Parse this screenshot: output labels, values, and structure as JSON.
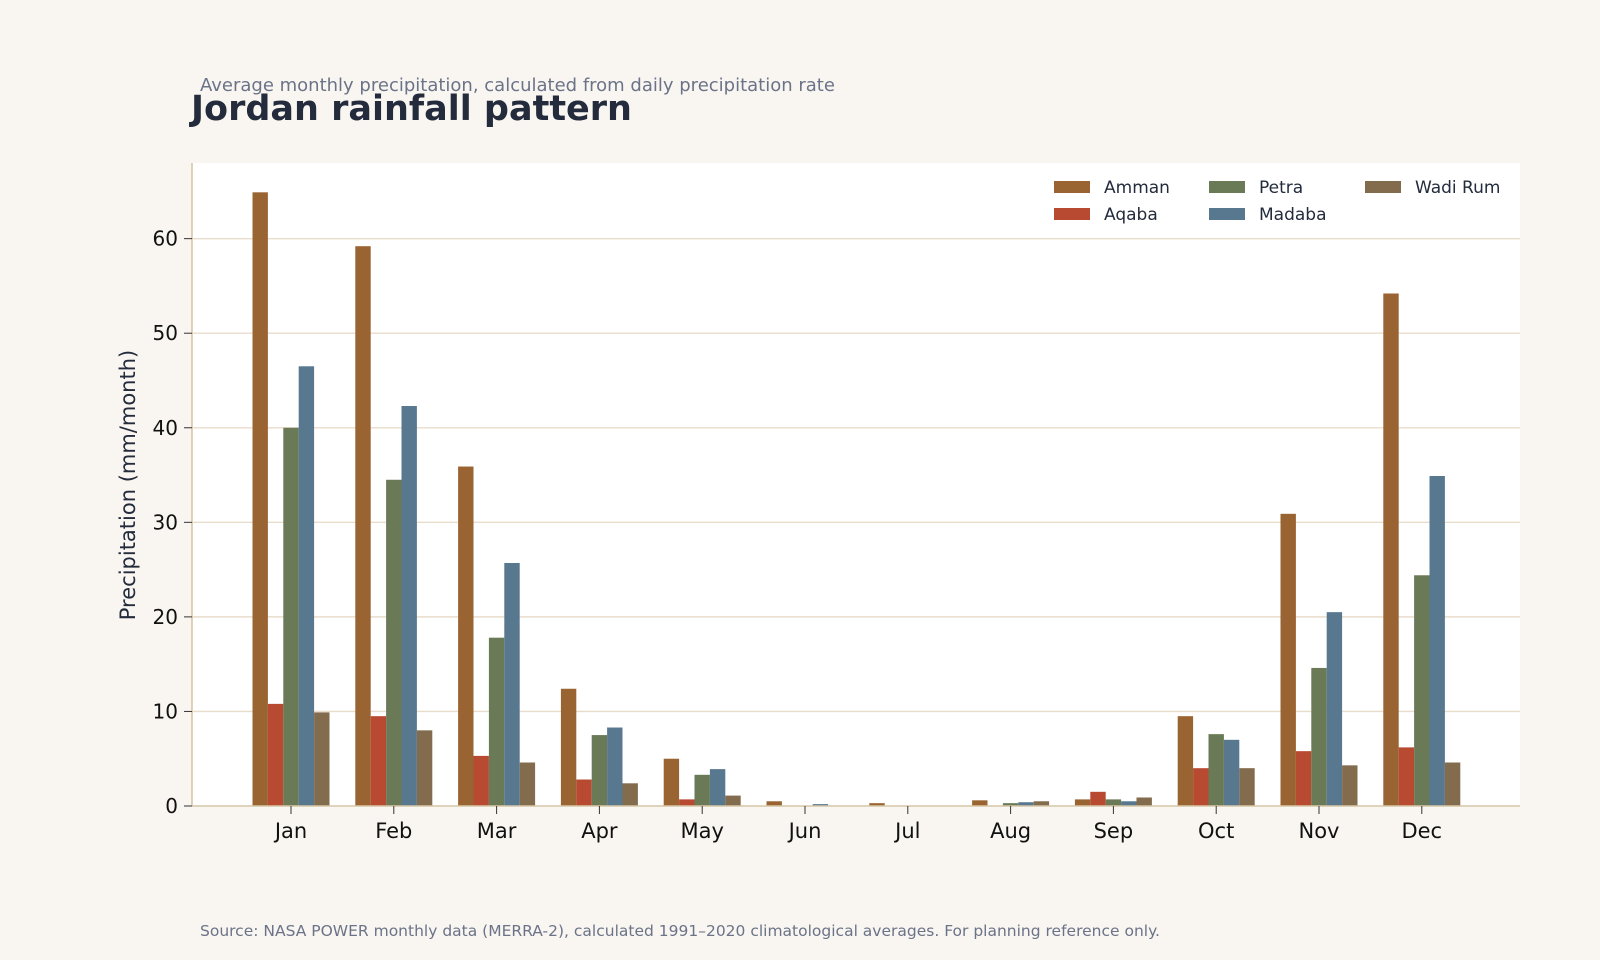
{
  "chart_data": {
    "type": "bar",
    "subtitle": "Average monthly precipitation, calculated from daily precipitation rate",
    "title": "Jordan rainfall pattern",
    "ylabel": "Precipitation (mm/month)",
    "xlabel": "",
    "ylim": [
      0,
      68
    ],
    "yticks": [
      0,
      10,
      20,
      30,
      40,
      50,
      60
    ],
    "grid": true,
    "legend_position": "top-right",
    "categories": [
      "Jan",
      "Feb",
      "Mar",
      "Apr",
      "May",
      "Jun",
      "Jul",
      "Aug",
      "Sep",
      "Oct",
      "Nov",
      "Dec"
    ],
    "series": [
      {
        "name": "Amman",
        "color": "#9a6432",
        "values": [
          64.9,
          59.2,
          35.9,
          12.4,
          5.0,
          0.5,
          0.3,
          0.6,
          0.7,
          9.5,
          30.9,
          54.2
        ]
      },
      {
        "name": "Aqaba",
        "color": "#b84a32",
        "values": [
          10.8,
          9.5,
          5.3,
          2.8,
          0.7,
          0.05,
          0.0,
          0.0,
          1.5,
          4.0,
          5.8,
          6.2
        ]
      },
      {
        "name": "Petra",
        "color": "#6a7a56",
        "values": [
          40.0,
          34.5,
          17.8,
          7.5,
          3.3,
          0.05,
          0.05,
          0.3,
          0.7,
          7.6,
          14.6,
          24.4
        ]
      },
      {
        "name": "Madaba",
        "color": "#587890",
        "values": [
          46.5,
          42.3,
          25.7,
          8.3,
          3.9,
          0.2,
          0.05,
          0.4,
          0.5,
          7.0,
          20.5,
          34.9
        ]
      },
      {
        "name": "Wadi Rum",
        "color": "#836b4e",
        "values": [
          9.9,
          8.0,
          4.6,
          2.4,
          1.1,
          0.05,
          0.0,
          0.5,
          0.9,
          4.0,
          4.3,
          4.6
        ]
      }
    ],
    "source": "Source: NASA POWER monthly data (MERRA-2), calculated 1991–2020 climatological averages. For planning reference only.",
    "colors": {
      "page_background": "#f9f6f1",
      "plot_background": "#ffffff",
      "grid": "#e8dccb",
      "axis": "#d6c6a6"
    }
  }
}
